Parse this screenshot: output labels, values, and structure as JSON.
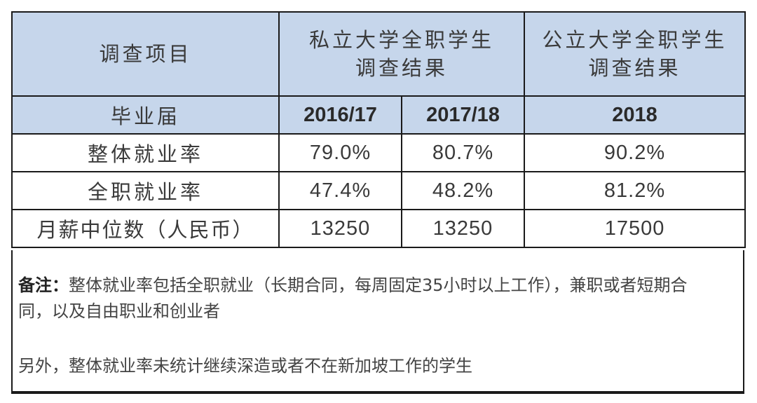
{
  "table": {
    "header": {
      "item_label": "调查项目",
      "private_line1": "私立大学全职学生",
      "private_line2": "调查结果",
      "public_line1": "公立大学全职学生",
      "public_line2": "调查结果"
    },
    "cohort_row": {
      "label": "毕业届",
      "values": [
        "2016/17",
        "2017/18",
        "2018"
      ]
    },
    "rows": [
      {
        "label": "整体就业率",
        "values": [
          "79.0%",
          "80.7%",
          "90.2%"
        ]
      },
      {
        "label": "全职就业率",
        "values": [
          "47.4%",
          "48.2%",
          "81.2%"
        ]
      },
      {
        "label": "月薪中位数（人民币）",
        "values": [
          "13250",
          "13250",
          "17500"
        ]
      }
    ]
  },
  "notes": {
    "label": "备注：",
    "note1": "整体就业率包括全职就业（长期合同，每周固定35小时以上工作），兼职或者短期合同，以及自由职业和创业者",
    "note2": "另外，整体就业率未统计继续深造或者不在新加坡工作的学生"
  },
  "colors": {
    "header_bg": "#c6d6eb",
    "border": "#1a1a1a"
  }
}
